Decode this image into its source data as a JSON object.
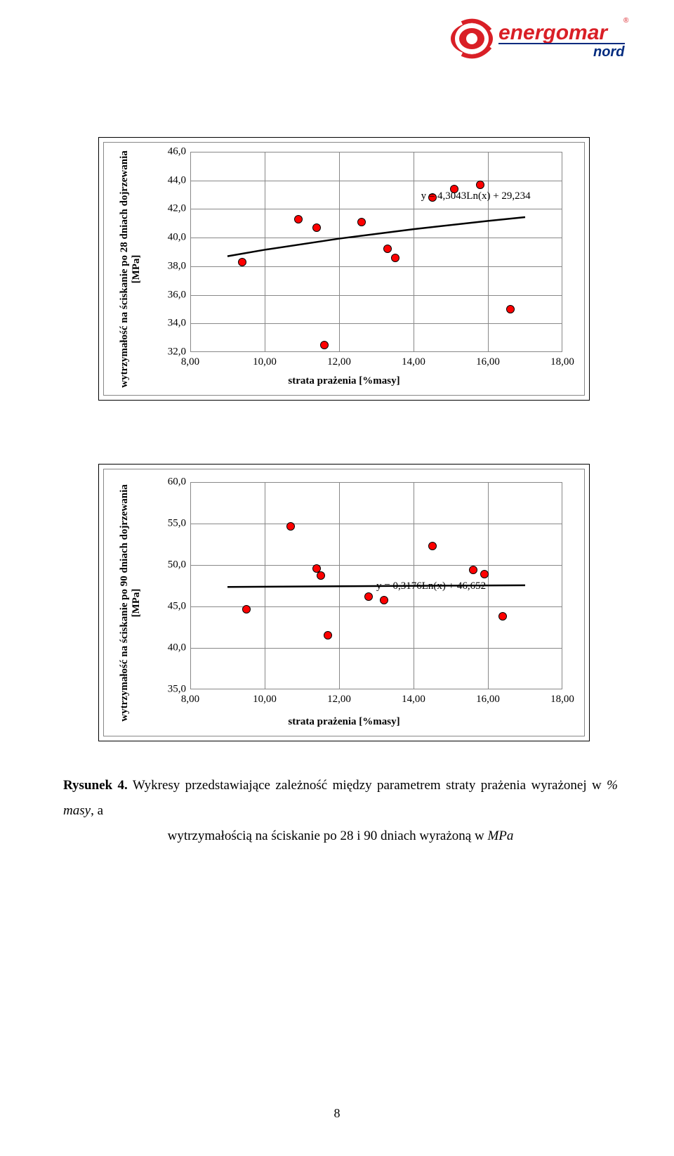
{
  "logo": {
    "brand_main": "energomar",
    "brand_sub": "nord",
    "red": "#d91f26",
    "blue": "#002b7f",
    "registered": "®"
  },
  "chart1": {
    "ylabel": "wytrzymałość na ściskanie po 28 dniach dojrzewania",
    "yunit": "[MPa]",
    "xlabel": "strata prażenia [%masy]",
    "xticks": [
      "8,00",
      "10,00",
      "12,00",
      "14,00",
      "16,00",
      "18,00"
    ],
    "yticks": [
      "32,0",
      "34,0",
      "36,0",
      "38,0",
      "40,0",
      "42,0",
      "44,0",
      "46,0"
    ],
    "xlim": [
      8,
      18
    ],
    "ylim": [
      32,
      46
    ],
    "equation": "y = 4,3043Ln(x) + 29,234",
    "eq_x": 14.2,
    "eq_y": 42.8,
    "point_fill": "#ff0000",
    "point_stroke": "#000000",
    "point_radius": 6,
    "line_color": "#000000",
    "line_width": 2.5,
    "grid_color": "#888888",
    "points": [
      {
        "x": 9.4,
        "y": 38.3
      },
      {
        "x": 10.9,
        "y": 41.3
      },
      {
        "x": 11.4,
        "y": 40.7
      },
      {
        "x": 11.6,
        "y": 32.5
      },
      {
        "x": 12.6,
        "y": 41.1
      },
      {
        "x": 13.3,
        "y": 39.2
      },
      {
        "x": 13.5,
        "y": 38.6
      },
      {
        "x": 14.5,
        "y": 42.8
      },
      {
        "x": 15.1,
        "y": 43.4
      },
      {
        "x": 15.8,
        "y": 43.7
      },
      {
        "x": 16.6,
        "y": 35.0
      }
    ],
    "curve": [
      {
        "x": 9.0,
        "y": 38.7
      },
      {
        "x": 10.0,
        "y": 39.15
      },
      {
        "x": 12.0,
        "y": 39.93
      },
      {
        "x": 14.0,
        "y": 40.59
      },
      {
        "x": 16.0,
        "y": 41.17
      },
      {
        "x": 17.0,
        "y": 41.43
      }
    ]
  },
  "chart2": {
    "ylabel": "wytrzymałość na ściskanie po 90 dniach dojrzewania",
    "yunit": "[MPa]",
    "xlabel": "strata prażenia [%masy]",
    "xticks": [
      "8,00",
      "10,00",
      "12,00",
      "14,00",
      "16,00",
      "18,00"
    ],
    "yticks": [
      "35,0",
      "40,0",
      "45,0",
      "50,0",
      "55,0",
      "60,0"
    ],
    "xlim": [
      8,
      18
    ],
    "ylim": [
      35,
      60
    ],
    "equation": "y = 0,3176Ln(x) + 46,652",
    "eq_x": 13.0,
    "eq_y": 47.3,
    "point_fill": "#ff0000",
    "point_stroke": "#000000",
    "point_radius": 6,
    "line_color": "#000000",
    "line_width": 2.5,
    "grid_color": "#888888",
    "points": [
      {
        "x": 9.5,
        "y": 44.7
      },
      {
        "x": 10.7,
        "y": 54.7
      },
      {
        "x": 11.4,
        "y": 49.6
      },
      {
        "x": 11.5,
        "y": 48.7
      },
      {
        "x": 11.7,
        "y": 41.5
      },
      {
        "x": 12.8,
        "y": 46.2
      },
      {
        "x": 13.2,
        "y": 45.8
      },
      {
        "x": 14.5,
        "y": 52.3
      },
      {
        "x": 15.6,
        "y": 49.4
      },
      {
        "x": 15.9,
        "y": 48.9
      },
      {
        "x": 16.4,
        "y": 43.8
      }
    ],
    "curve": [
      {
        "x": 9.0,
        "y": 47.35
      },
      {
        "x": 12.0,
        "y": 47.44
      },
      {
        "x": 15.0,
        "y": 47.51
      },
      {
        "x": 17.0,
        "y": 47.55
      }
    ]
  },
  "caption": {
    "label": "Rysunek 4.",
    "line1_rest": " Wykresy przedstawiające zależność między parametrem straty prażenia wyrażonej w ",
    "line1_italic": "% masy",
    "line1_end": ", a",
    "line2_start": "wytrzymałością na ściskanie po 28 i 90 dniach wyrażoną w ",
    "line2_italic": "MPa"
  },
  "pagenum": "8"
}
